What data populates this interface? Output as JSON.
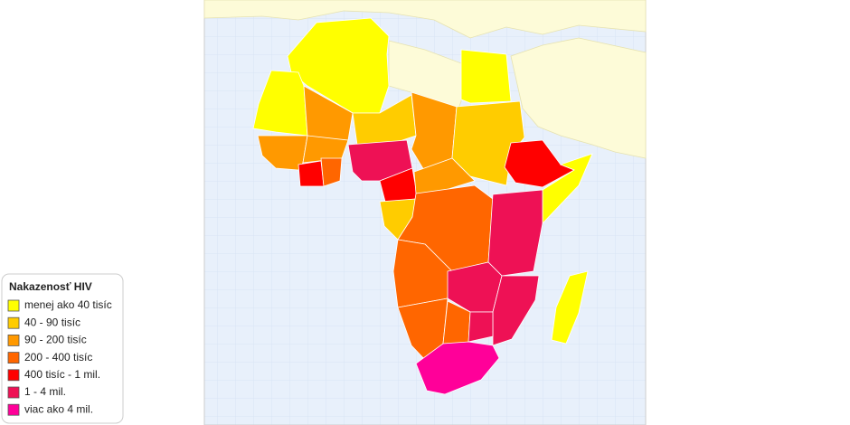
{
  "legend": {
    "title": "Nakazenosť HIV",
    "items": [
      {
        "label": "menej ako 40 tisíc",
        "color": "#ffff00"
      },
      {
        "label": "40 - 90 tisíc",
        "color": "#ffcc00"
      },
      {
        "label": "90 - 200 tisíc",
        "color": "#ff9900"
      },
      {
        "label": "200 - 400 tisíc",
        "color": "#ff6600"
      },
      {
        "label": "400 tisíc - 1 mil.",
        "color": "#ff0000"
      },
      {
        "label": "1 - 4 mil.",
        "color": "#ee1155"
      },
      {
        "label": "viac ako 4 mil.",
        "color": "#ff0099"
      }
    ]
  }
}
